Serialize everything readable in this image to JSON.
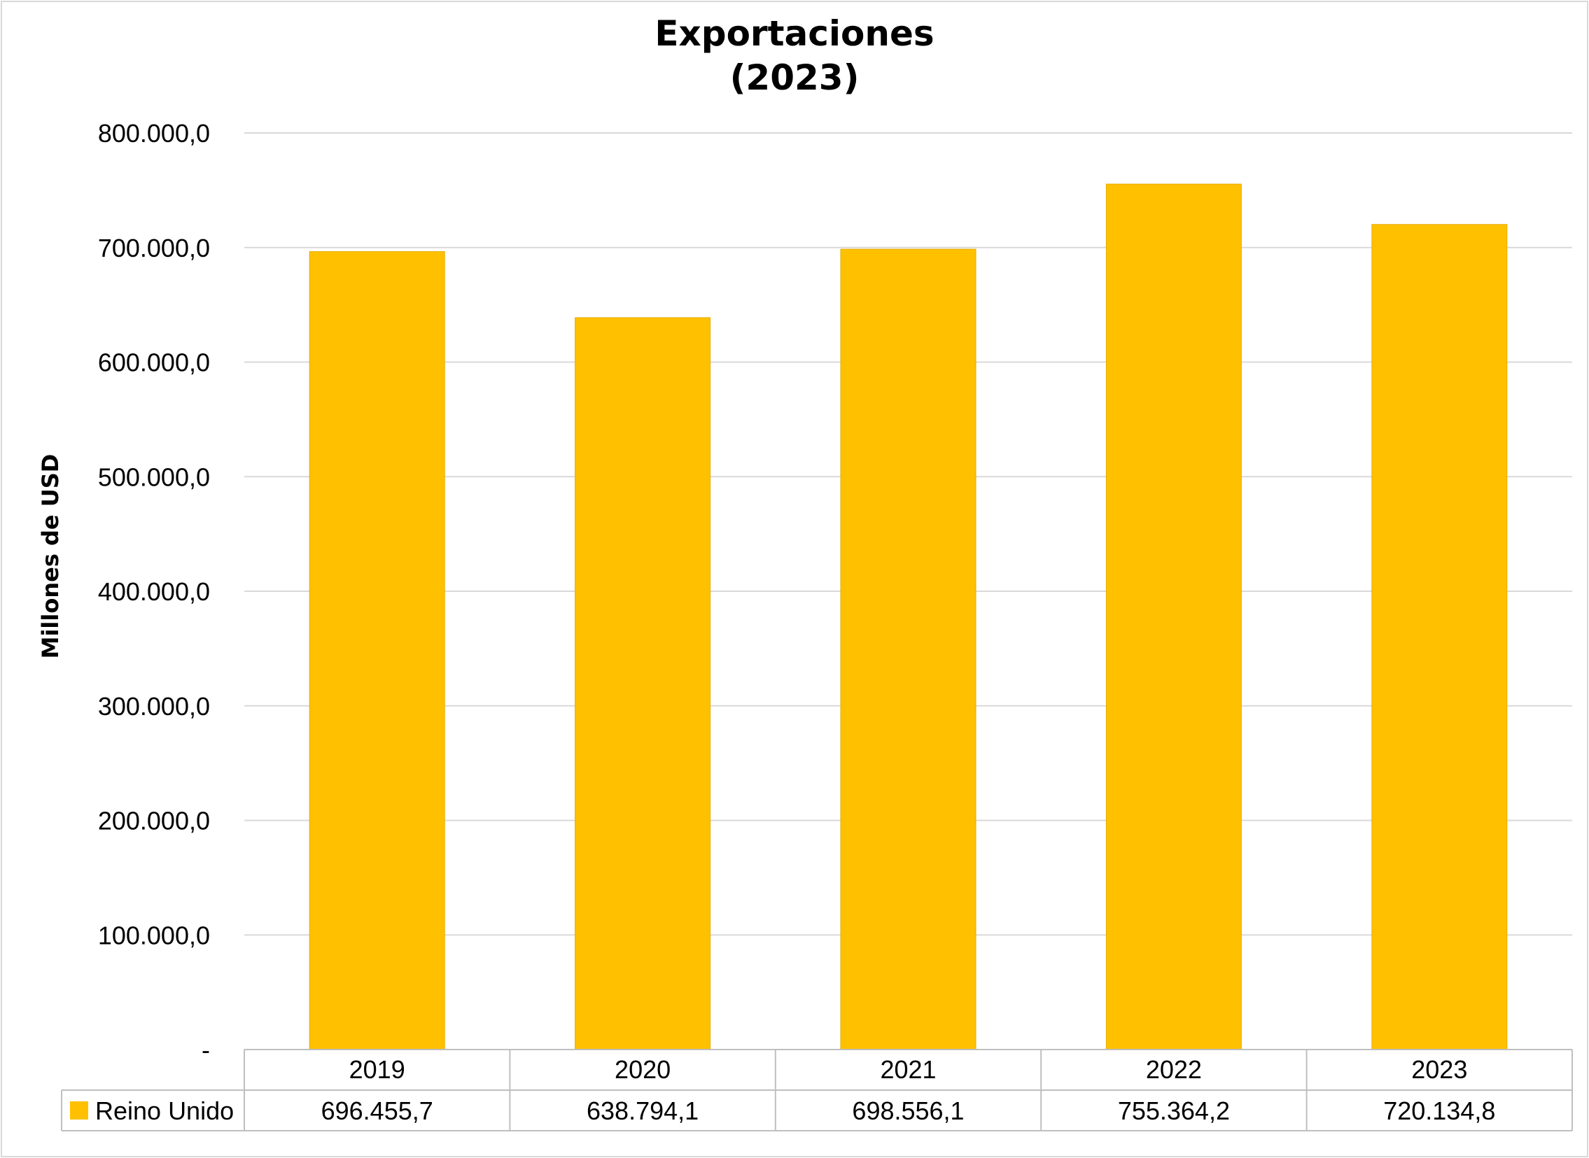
{
  "chart_data": {
    "type": "bar",
    "title_line1": "Exportaciones",
    "title_line2": "(2023)",
    "ylabel": "Millones de USD",
    "categories": [
      "2019",
      "2020",
      "2021",
      "2022",
      "2023"
    ],
    "series": [
      {
        "name": "Reino Unido",
        "values": [
          696455.7,
          638794.1,
          698556.1,
          755364.2,
          720134.8
        ],
        "value_labels": [
          "696.455,7",
          "638.794,1",
          "698.556,1",
          "755.364,2",
          "720.134,8"
        ],
        "color": "#FFC000"
      }
    ],
    "ylim": [
      0,
      800000
    ],
    "yticks": [
      0,
      100000,
      200000,
      300000,
      400000,
      500000,
      600000,
      700000,
      800000
    ],
    "ytick_labels": [
      "-",
      "100.000,0",
      "200.000,0",
      "300.000,0",
      "400.000,0",
      "500.000,0",
      "600.000,0",
      "700.000,0",
      "800.000,0"
    ],
    "grid": true,
    "legend": "data-table",
    "gridline_color": "#D9D9D9",
    "border_color": "#BFBFBF"
  }
}
